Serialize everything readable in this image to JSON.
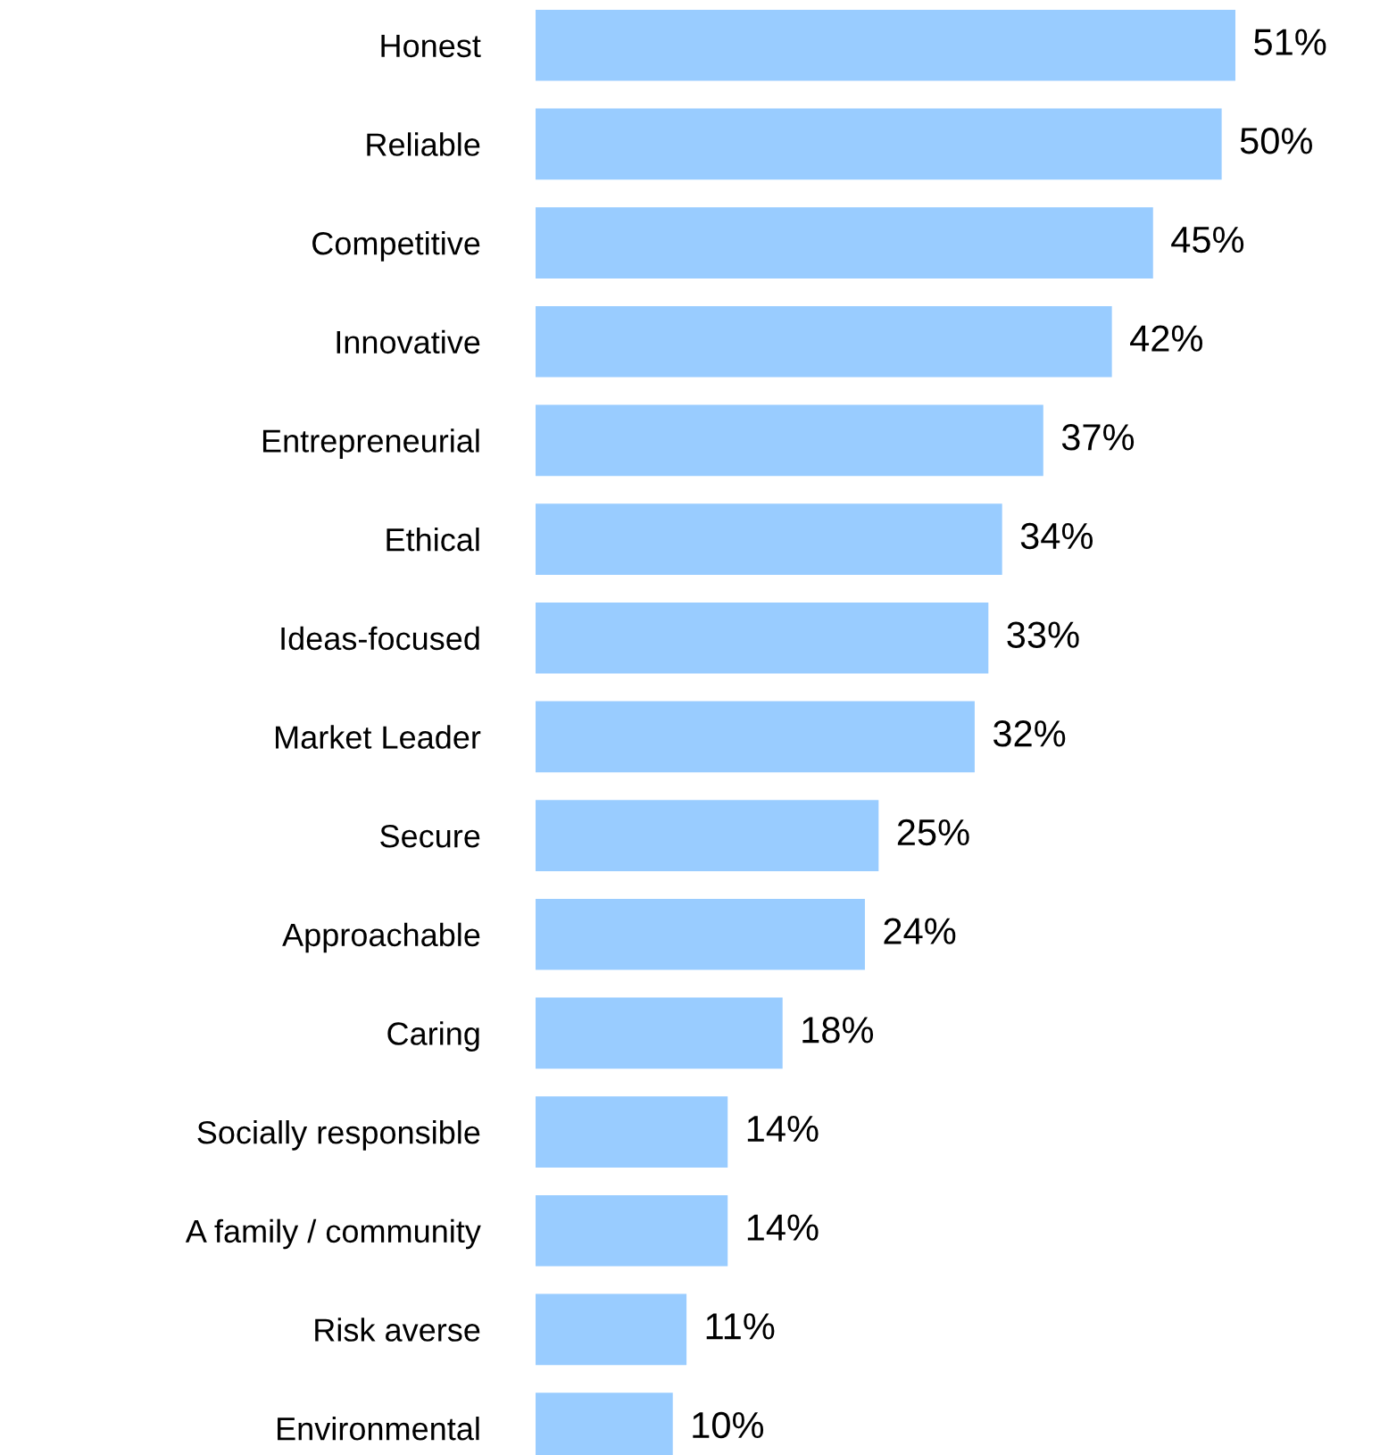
{
  "chart_data": {
    "type": "bar",
    "orientation": "horizontal",
    "categories": [
      "Honest",
      "Reliable",
      "Competitive",
      "Innovative",
      "Entrepreneurial",
      "Ethical",
      "Ideas-focused",
      "Market Leader",
      "Secure",
      "Approachable",
      "Caring",
      "Socially responsible",
      "A family / community",
      "Risk averse",
      "Environmental"
    ],
    "values": [
      51,
      50,
      45,
      42,
      37,
      34,
      33,
      32,
      25,
      24,
      18,
      14,
      14,
      11,
      10
    ],
    "value_labels": [
      "51%",
      "50%",
      "45%",
      "42%",
      "37%",
      "34%",
      "33%",
      "32%",
      "25%",
      "24%",
      "18%",
      "14%",
      "14%",
      "11%",
      "10%"
    ],
    "color": "#99ccff"
  }
}
